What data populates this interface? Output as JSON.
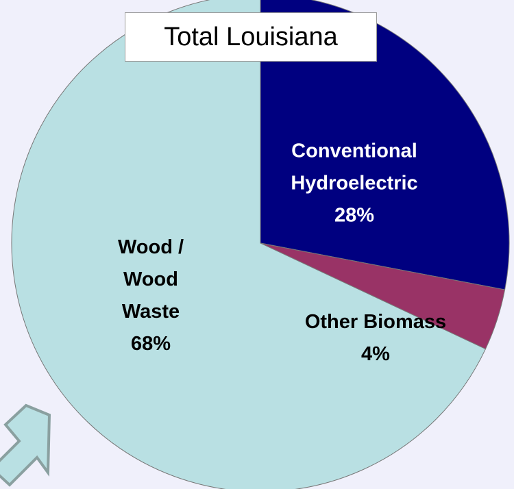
{
  "chart_data": {
    "type": "pie",
    "title": "Total Louisiana",
    "categories": [
      "Conventional Hydroelectric",
      "Other Biomass",
      "Wood / Wood Waste"
    ],
    "values": [
      28,
      4,
      68
    ],
    "value_labels": [
      "28%",
      "4%",
      "68%"
    ],
    "colors": [
      "#000080",
      "#993366",
      "#b9e0e3"
    ]
  }
}
